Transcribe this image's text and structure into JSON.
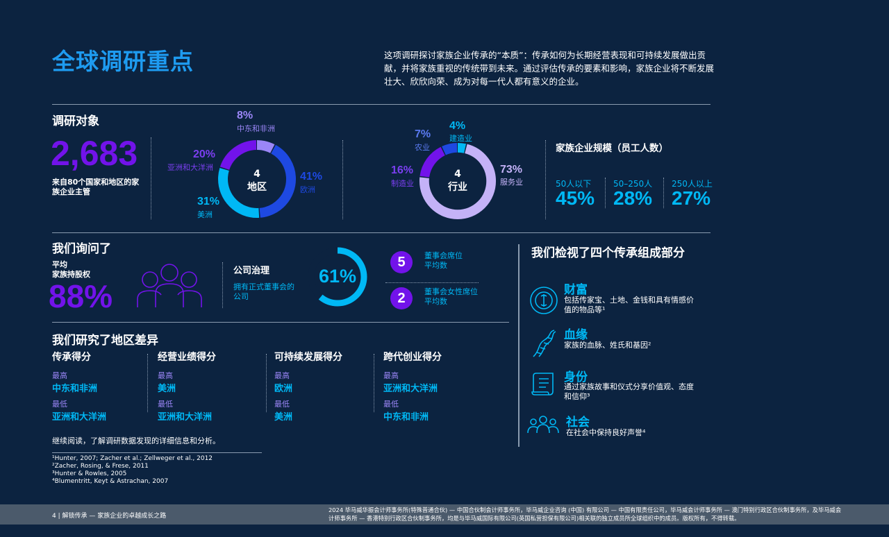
{
  "title": "全球调研重点",
  "intro": "这项调研探讨家族企业传承的“本质”：传承如何为长期经营表现和可持续发展做出贡献，并将家族重视的传统带到未来。通过评估传承的要素和影响，家族企业将不断发展壮大、欣欣向荣、成为对每一代人都有意义的企业。",
  "survey": {
    "heading": "调研对象",
    "total": "2,683",
    "total_desc": "来自80个国家和地区的家族企业主管",
    "regions": {
      "center_num": "4",
      "center_label": "地区",
      "segments": [
        {
          "pct": "8%",
          "label": "中东和非洲",
          "value": 8,
          "color": "#9b86f7"
        },
        {
          "pct": "41%",
          "label": "欧洲",
          "value": 41,
          "color": "#1e49e2"
        },
        {
          "pct": "31%",
          "label": "美洲",
          "value": 31,
          "color": "#00b8f5"
        },
        {
          "pct": "20%",
          "label": "亚洲和大洋洲",
          "value": 20,
          "color": "#7213ea"
        }
      ]
    },
    "industries": {
      "center_num": "4",
      "center_label": "行业",
      "segments": [
        {
          "pct": "4%",
          "label": "建造业",
          "value": 4,
          "color": "#00b8f5"
        },
        {
          "pct": "73%",
          "label": "服务业",
          "value": 73,
          "color": "#c4b2f7"
        },
        {
          "pct": "16%",
          "label": "制造业",
          "value": 16,
          "color": "#7213ea"
        },
        {
          "pct": "7%",
          "label": "农业",
          "value": 7,
          "color": "#1e49e2"
        }
      ]
    },
    "size": {
      "heading": "家族企业规模（员工人数）",
      "items": [
        {
          "label": "50人以下",
          "value": "45%"
        },
        {
          "label": "50–250人",
          "value": "28%"
        },
        {
          "label": "250人以上",
          "value": "27%"
        }
      ]
    }
  },
  "asked": {
    "heading": "我们询问了",
    "avg_label": "平均\n家族持股权",
    "avg_value": "88%",
    "gov_heading": "公司治理",
    "gov_desc": "拥有正式董事会的公司",
    "gov_pct": "61%",
    "gov_value": 61,
    "board_seats_num": "5",
    "board_seats_label": "董事会席位\n平均数",
    "women_seats_num": "2",
    "women_seats_label": "董事会女性席位\n平均数"
  },
  "regional": {
    "heading": "我们研究了地区差异",
    "high_label": "最高",
    "low_label": "最低",
    "columns": [
      {
        "title": "传承得分",
        "high": "中东和非洲",
        "low": "亚洲和大洋洲"
      },
      {
        "title": "经营业绩得分",
        "high": "美洲",
        "low": "亚洲和大洋洲"
      },
      {
        "title": "可持续发展得分",
        "high": "欧洲",
        "low": "美洲"
      },
      {
        "title": "跨代创业得分",
        "high": "亚洲和大洋洲",
        "low": "中东和非洲"
      }
    ],
    "read_more": "继续阅读，了解调研数据发现的详细信息和分析。"
  },
  "components": {
    "heading": "我们检视了四个传承组成部分",
    "items": [
      {
        "title": "财富",
        "desc": "包括传家宝、土地、金钱和具有情感价值的物品等¹",
        "icon": "wealth-icon"
      },
      {
        "title": "血缘",
        "desc": "家族的血脉、姓氏和基因²",
        "icon": "dna-icon"
      },
      {
        "title": "身份",
        "desc": "通过家族故事和仪式分享价值观、态度和信仰³",
        "icon": "scroll-icon"
      },
      {
        "title": "社会",
        "desc": "在社会中保持良好声誉⁴",
        "icon": "people-icon"
      }
    ]
  },
  "footnotes": [
    "¹Hunter, 2007; Zacher et al.; Zellweger et al., 2012",
    "²Zacher, Rosing, & Frese, 2011",
    "³Hunter & Rowles, 2005",
    "⁴Blumentritt, Keyt & Astrachan, 2007"
  ],
  "footer": {
    "left": "4 | 解锁传承 — 家族企业的卓越成长之路",
    "right": "2024 毕马威华振会计师事务所(特殊普通合伙) — 中国合伙制会计师事务所，毕马威企业咨询 (中国) 有限公司 — 中国有限责任公司，毕马威会计师事务所 — 澳门特别行政区合伙制事务所，及毕马威会计师事务所 — 香港特别行政区合伙制事务所，均是与毕马威国际有限公司(英国私营担保有限公司)相关联的独立成员所全球组织中的成员。版权所有，不得转载。"
  }
}
